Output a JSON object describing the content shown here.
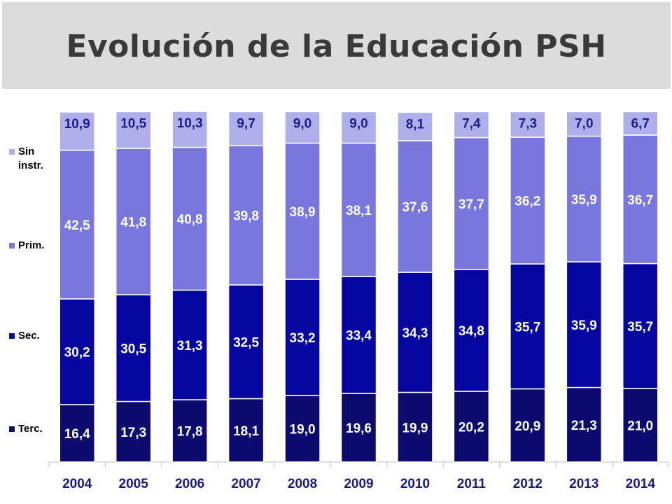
{
  "title": "Evolución de la Educación PSH",
  "chart_data": {
    "type": "bar",
    "stacked": true,
    "categories": [
      "2004",
      "2005",
      "2006",
      "2007",
      "2008",
      "2009",
      "2010",
      "2011",
      "2012",
      "2013",
      "2014"
    ],
    "series": [
      {
        "name": "Terc.",
        "color": "#0b0b6e",
        "values": [
          16.4,
          17.3,
          17.8,
          18.1,
          19.0,
          19.6,
          19.9,
          20.2,
          20.9,
          21.3,
          21.0
        ],
        "labels": [
          "16,4",
          "17,3",
          "17,8",
          "18,1",
          "19,0",
          "19,6",
          "19,9",
          "20,2",
          "20,9",
          "21,3",
          "21,0"
        ]
      },
      {
        "name": "Sec.",
        "color": "#0505a0",
        "values": [
          30.2,
          30.5,
          31.3,
          32.5,
          33.2,
          33.4,
          34.3,
          34.8,
          35.7,
          35.9,
          35.7
        ],
        "labels": [
          "30,2",
          "30,5",
          "31,3",
          "32,5",
          "33,2",
          "33,4",
          "34,3",
          "34,8",
          "35,7",
          "35,9",
          "35,7"
        ]
      },
      {
        "name": "Prim.",
        "color": "#7777dd",
        "values": [
          42.5,
          41.8,
          40.8,
          39.8,
          38.9,
          38.1,
          37.6,
          37.7,
          36.2,
          35.9,
          36.7
        ],
        "labels": [
          "42,5",
          "41,8",
          "40,8",
          "39,8",
          "38,9",
          "38,1",
          "37,6",
          "37,7",
          "36,2",
          "35,9",
          "36,7"
        ]
      },
      {
        "name": "Sin instr.",
        "color": "#aeaeea",
        "values": [
          10.9,
          10.5,
          10.3,
          9.7,
          9.0,
          9.0,
          8.1,
          7.4,
          7.3,
          7.0,
          6.7
        ],
        "labels": [
          "10,9",
          "10,5",
          "10,3",
          "9,7",
          "9,0",
          "9,0",
          "8,1",
          "7,4",
          "7,3",
          "7,0",
          "6,7"
        ]
      }
    ],
    "ylim": [
      0,
      100
    ],
    "legend_position": "left",
    "grid": false,
    "label_colors": {
      "Terc.": "#ffffff",
      "Sec.": "#ffffff",
      "Prim.": "#ffffff",
      "Sin instr.": "#1c1c8c"
    },
    "tick_label_color": "#1a1a80",
    "axis_color": "#bfbfbf"
  },
  "legend": [
    {
      "label": "Sin\ninstr.",
      "color": "#aeaeea"
    },
    {
      "label": "Prim.",
      "color": "#7777dd"
    },
    {
      "label": "Sec.",
      "color": "#0505a0"
    },
    {
      "label": "Terc.",
      "color": "#0b0b6e"
    }
  ]
}
